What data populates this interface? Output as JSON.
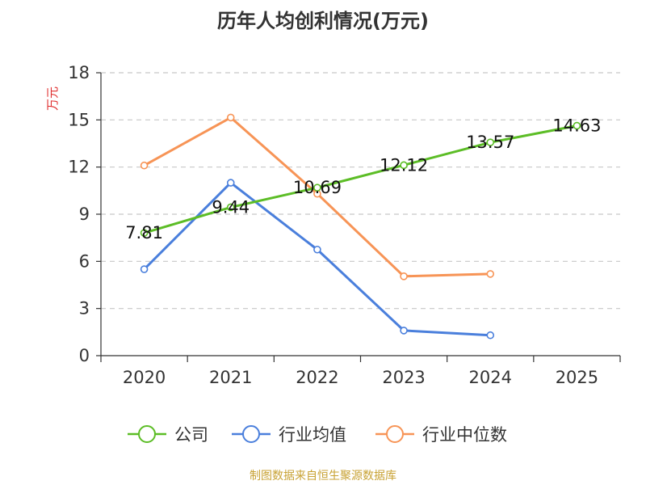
{
  "chart_data": {
    "type": "line",
    "title": "历年人均创利情况(万元)",
    "ylabel": "万元",
    "xlabel": "",
    "ylim": [
      0,
      18
    ],
    "yticks": [
      0,
      3,
      6,
      9,
      12,
      15,
      18
    ],
    "categories": [
      "2020",
      "2021",
      "2022",
      "2023",
      "2024",
      "2025"
    ],
    "grid": true,
    "legend_position": "bottom",
    "series": [
      {
        "name": "公司",
        "color": "#5cbd26",
        "values": [
          7.81,
          9.44,
          10.69,
          12.12,
          13.57,
          14.63
        ],
        "labels": [
          "7.81",
          "9.44",
          "10.69",
          "12.12",
          "13.57",
          "14.63"
        ]
      },
      {
        "name": "行业均值",
        "color": "#4a7fdc",
        "values": [
          5.5,
          11.0,
          6.75,
          1.6,
          1.3,
          null
        ]
      },
      {
        "name": "行业中位数",
        "color": "#f79456",
        "values": [
          12.1,
          15.15,
          10.3,
          5.05,
          5.2,
          null
        ]
      }
    ]
  },
  "source": "制图数据来自恒生聚源数据库"
}
